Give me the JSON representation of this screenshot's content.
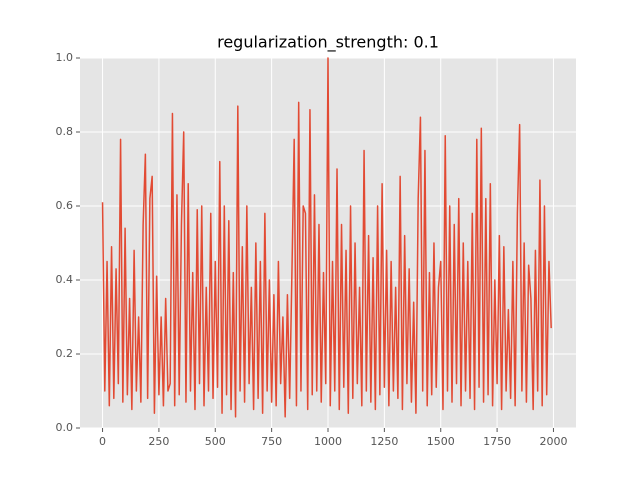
{
  "chart_data": {
    "type": "line",
    "title": "regularization_strength: 0.1",
    "x": [
      0,
      10,
      20,
      30,
      40,
      50,
      60,
      70,
      80,
      90,
      100,
      110,
      120,
      130,
      140,
      150,
      160,
      170,
      180,
      190,
      200,
      210,
      220,
      230,
      240,
      250,
      260,
      270,
      280,
      290,
      300,
      310,
      320,
      330,
      340,
      350,
      360,
      370,
      380,
      390,
      400,
      410,
      420,
      430,
      440,
      450,
      460,
      470,
      480,
      490,
      500,
      510,
      520,
      530,
      540,
      550,
      560,
      570,
      580,
      590,
      600,
      610,
      620,
      630,
      640,
      650,
      660,
      670,
      680,
      690,
      700,
      710,
      720,
      730,
      740,
      750,
      760,
      770,
      780,
      790,
      800,
      810,
      820,
      830,
      840,
      850,
      860,
      870,
      880,
      890,
      900,
      910,
      920,
      930,
      940,
      950,
      960,
      970,
      980,
      990,
      1000,
      1010,
      1020,
      1030,
      1040,
      1050,
      1060,
      1070,
      1080,
      1090,
      1100,
      1110,
      1120,
      1130,
      1140,
      1150,
      1160,
      1170,
      1180,
      1190,
      1200,
      1210,
      1220,
      1230,
      1240,
      1250,
      1260,
      1270,
      1280,
      1290,
      1300,
      1310,
      1320,
      1330,
      1340,
      1350,
      1360,
      1370,
      1380,
      1390,
      1400,
      1410,
      1420,
      1430,
      1440,
      1450,
      1460,
      1470,
      1480,
      1490,
      1500,
      1510,
      1520,
      1530,
      1540,
      1550,
      1560,
      1570,
      1580,
      1590,
      1600,
      1610,
      1620,
      1630,
      1640,
      1650,
      1660,
      1670,
      1680,
      1690,
      1700,
      1710,
      1720,
      1730,
      1740,
      1750,
      1760,
      1770,
      1780,
      1790,
      1800,
      1810,
      1820,
      1830,
      1840,
      1850,
      1860,
      1870,
      1880,
      1890,
      1900,
      1910,
      1920,
      1930,
      1940,
      1950,
      1960,
      1970,
      1980,
      1990
    ],
    "series": [
      {
        "color": "#e24a33",
        "values": [
          0.61,
          0.1,
          0.45,
          0.06,
          0.49,
          0.08,
          0.43,
          0.12,
          0.78,
          0.07,
          0.54,
          0.09,
          0.35,
          0.05,
          0.48,
          0.1,
          0.3,
          0.07,
          0.55,
          0.74,
          0.08,
          0.62,
          0.68,
          0.04,
          0.41,
          0.09,
          0.3,
          0.06,
          0.35,
          0.1,
          0.12,
          0.85,
          0.06,
          0.63,
          0.09,
          0.55,
          0.8,
          0.07,
          0.66,
          0.1,
          0.42,
          0.05,
          0.59,
          0.12,
          0.6,
          0.06,
          0.38,
          0.1,
          0.58,
          0.08,
          0.45,
          0.11,
          0.72,
          0.04,
          0.6,
          0.09,
          0.56,
          0.05,
          0.42,
          0.03,
          0.87,
          0.1,
          0.49,
          0.07,
          0.6,
          0.12,
          0.38,
          0.05,
          0.5,
          0.08,
          0.45,
          0.04,
          0.58,
          0.1,
          0.4,
          0.07,
          0.36,
          0.06,
          0.45,
          0.12,
          0.3,
          0.03,
          0.36,
          0.08,
          0.42,
          0.78,
          0.06,
          0.88,
          0.1,
          0.6,
          0.58,
          0.05,
          0.86,
          0.09,
          0.63,
          0.1,
          0.55,
          0.07,
          0.42,
          0.12,
          1.0,
          0.06,
          0.45,
          0.1,
          0.7,
          0.05,
          0.55,
          0.11,
          0.48,
          0.04,
          0.6,
          0.08,
          0.5,
          0.12,
          0.38,
          0.06,
          0.75,
          0.1,
          0.52,
          0.07,
          0.46,
          0.05,
          0.6,
          0.09,
          0.66,
          0.11,
          0.48,
          0.06,
          0.45,
          0.1,
          0.38,
          0.08,
          0.68,
          0.05,
          0.52,
          0.12,
          0.43,
          0.07,
          0.34,
          0.04,
          0.62,
          0.84,
          0.1,
          0.75,
          0.06,
          0.42,
          0.09,
          0.5,
          0.11,
          0.38,
          0.45,
          0.05,
          0.79,
          0.1,
          0.6,
          0.07,
          0.55,
          0.12,
          0.62,
          0.06,
          0.5,
          0.1,
          0.45,
          0.08,
          0.58,
          0.05,
          0.78,
          0.11,
          0.81,
          0.07,
          0.62,
          0.09,
          0.66,
          0.06,
          0.4,
          0.12,
          0.52,
          0.05,
          0.49,
          0.1,
          0.32,
          0.08,
          0.45,
          0.06,
          0.58,
          0.82,
          0.1,
          0.5,
          0.07,
          0.44,
          0.35,
          0.05,
          0.48,
          0.1,
          0.67,
          0.06,
          0.6,
          0.09,
          0.45,
          0.27
        ]
      }
    ],
    "xlim": [
      -100,
      2100
    ],
    "ylim": [
      0,
      1
    ],
    "xticks": [
      0,
      250,
      500,
      750,
      1000,
      1250,
      1500,
      1750,
      2000
    ],
    "yticks": [
      {
        "value": 0,
        "label": "0.0"
      },
      {
        "value": 0.2,
        "label": "0.2"
      },
      {
        "value": 0.4,
        "label": "0.4"
      },
      {
        "value": 0.6,
        "label": "0.6"
      },
      {
        "value": 0.8,
        "label": "0.8"
      },
      {
        "value": 1,
        "label": "1.0"
      }
    ],
    "grid": true
  }
}
